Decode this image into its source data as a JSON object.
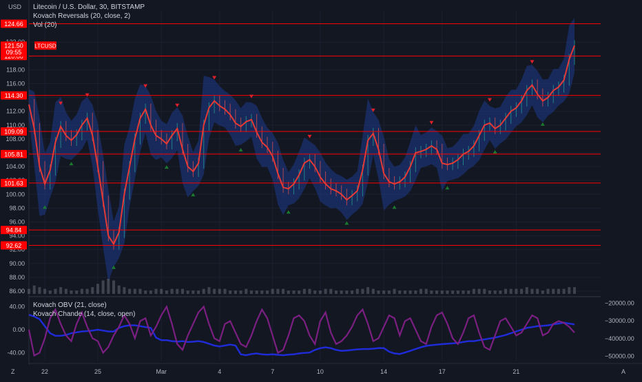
{
  "header": {
    "symbol_line": "Litecoin / U.S. Dollar, 30, BITSTAMP",
    "indicator_1": "Kovach Reversals (20, close, 2)",
    "indicator_2": "Vol (20)",
    "currency": "USD"
  },
  "price_tag": {
    "symbol": "LTCUSD",
    "price": "121.50",
    "countdown": "09:55"
  },
  "oscillator_legend": {
    "line_1": "Kovach OBV (21, close)",
    "line_2": "Kovach Chande (14, close, open)"
  },
  "bottom_corners": {
    "left": "Z",
    "right": "A"
  },
  "colors": {
    "background": "#131722",
    "level_line": "#ff0000",
    "price_line": "#e53935",
    "band_fill": "#1e3a8a",
    "up_marker": "#1b7a2f",
    "down_marker": "#e0202a",
    "obv_line": "#1f2bd6",
    "chande_line": "#7b1f82",
    "volume": "#5d606b"
  },
  "chart_data": [
    {
      "type": "line",
      "title": "Litecoin / U.S. Dollar, 30, BITSTAMP",
      "ylabel": "USD",
      "x_tick_labels": [
        "22",
        "25",
        "Mar",
        "4",
        "7",
        "10",
        "14",
        "17",
        "21"
      ],
      "y_ticks": [
        86.0,
        88.0,
        90.0,
        92.0,
        94.0,
        96.0,
        98.0,
        100.0,
        102.0,
        104.0,
        106.0,
        108.0,
        110.0,
        112.0,
        114.0,
        116.0,
        118.0,
        120.0,
        122.0
      ],
      "ylim": [
        85.5,
        126.5
      ],
      "horizontal_levels": [
        124.66,
        120.0,
        114.3,
        109.09,
        105.81,
        101.63,
        94.84,
        92.62
      ],
      "last_price": 121.5,
      "series": [
        {
          "values": [
            113.0,
            109.5,
            104.0,
            101.5,
            103.5,
            107.5,
            109.8,
            108.5,
            107.8,
            108.6,
            110.0,
            111.0,
            108.5,
            104.0,
            99.0,
            94.0,
            92.8,
            94.5,
            100.0,
            104.0,
            108.0,
            111.0,
            112.3,
            110.0,
            108.5,
            108.0,
            107.3,
            108.5,
            109.5,
            106.5,
            104.0,
            103.3,
            104.5,
            110.0,
            112.5,
            113.5,
            112.8,
            112.3,
            111.5,
            110.3,
            109.8,
            110.5,
            110.8,
            109.0,
            107.5,
            106.8,
            105.5,
            103.0,
            101.0,
            100.8,
            101.5,
            102.8,
            104.5,
            105.0,
            104.0,
            102.5,
            101.5,
            100.8,
            100.5,
            100.0,
            99.2,
            99.8,
            100.5,
            103.5,
            107.8,
            108.8,
            106.5,
            103.0,
            101.8,
            101.5,
            101.8,
            102.5,
            104.0,
            106.0,
            106.2,
            106.5,
            107.0,
            106.5,
            104.5,
            104.3,
            104.5,
            105.0,
            105.8,
            106.2,
            107.0,
            108.5,
            110.0,
            110.3,
            109.5,
            110.0,
            111.0,
            112.0,
            112.5,
            113.5,
            115.0,
            115.8,
            114.5,
            113.5,
            114.0,
            115.0,
            115.5,
            116.5,
            119.5,
            121.5
          ],
          "note": ""
        }
      ],
      "x_tick_index": [
        3,
        13,
        25,
        36,
        46,
        55,
        67,
        78,
        92
      ]
    },
    {
      "type": "bar",
      "ylabel": "",
      "series": [
        {
          "values": [
            3,
            5,
            4,
            3,
            2,
            3,
            4,
            3,
            2,
            2,
            3,
            3,
            4,
            6,
            8,
            9,
            8,
            5,
            4,
            3,
            3,
            3,
            2,
            2,
            3,
            3,
            2,
            3,
            3,
            3,
            2,
            2,
            2,
            3,
            4,
            3,
            3,
            3,
            2,
            2,
            2,
            3,
            2,
            2,
            2,
            2,
            3,
            3,
            3,
            2,
            2,
            2,
            3,
            3,
            2,
            2,
            3,
            3,
            2,
            2,
            2,
            2,
            3,
            3,
            4,
            3,
            2,
            2,
            2,
            3,
            2,
            2,
            2,
            2,
            3,
            3,
            2,
            2,
            2,
            2,
            2,
            2,
            2,
            2,
            3,
            3,
            3,
            2,
            2,
            2,
            3,
            3,
            3,
            3,
            4,
            3,
            3,
            2,
            3,
            3,
            3,
            3,
            4,
            4
          ]
        }
      ]
    },
    {
      "type": "line",
      "left_axis_ticks": [
        40.0,
        0.0,
        -40.0
      ],
      "left_axis_labels": [
        "40.00",
        "0.00",
        "-40.00"
      ],
      "left_ylim": [
        -55,
        55
      ],
      "right_axis_ticks": [
        -20000,
        -30000,
        -40000,
        -50000
      ],
      "right_axis_labels": [
        "−20000.00",
        "−30000.00",
        "−40000.00",
        "−50000.00"
      ],
      "right_ylim": [
        -53000,
        -17000
      ],
      "series": [
        {
          "name": "Kovach OBV (21, close)",
          "axis": "right",
          "values": [
            -26500,
            -27500,
            -29000,
            -33000,
            -37000,
            -38500,
            -38500,
            -38000,
            -37000,
            -36500,
            -36000,
            -35800,
            -35500,
            -35000,
            -35500,
            -36000,
            -36000,
            -34000,
            -33000,
            -32500,
            -32500,
            -33000,
            -33500,
            -34000,
            -39500,
            -41000,
            -41000,
            -41500,
            -41800,
            -41500,
            -42000,
            -41800,
            -41500,
            -42000,
            -43000,
            -44000,
            -44500,
            -44000,
            -43500,
            -44000,
            -49000,
            -49500,
            -48800,
            -48500,
            -49000,
            -49200,
            -49000,
            -49300,
            -49500,
            -49200,
            -49000,
            -48500,
            -48200,
            -48000,
            -46500,
            -45500,
            -45000,
            -45500,
            -46500,
            -47000,
            -46800,
            -46500,
            -46200,
            -46000,
            -46000,
            -45800,
            -45500,
            -45500,
            -47500,
            -48500,
            -48800,
            -48000,
            -47000,
            -46000,
            -45000,
            -44200,
            -43800,
            -43500,
            -43200,
            -43000,
            -42800,
            -42500,
            -42000,
            -41500,
            -41500,
            -41000,
            -40500,
            -40000,
            -39500,
            -38800,
            -38000,
            -37000,
            -36000,
            -35000,
            -34000,
            -33500,
            -33000,
            -32800,
            -32500,
            -32000,
            -31500,
            -31000,
            -31500,
            -32000
          ]
        },
        {
          "name": "Kovach Chande (14, close, open)",
          "axis": "left",
          "values": [
            0,
            -45,
            -40,
            -15,
            20,
            35,
            10,
            -10,
            -20,
            10,
            30,
            5,
            -15,
            -20,
            -40,
            -30,
            -10,
            5,
            25,
            10,
            -15,
            15,
            20,
            -10,
            5,
            25,
            40,
            10,
            -25,
            -35,
            -10,
            10,
            30,
            40,
            10,
            -15,
            -20,
            10,
            15,
            -5,
            -25,
            -30,
            -10,
            15,
            35,
            20,
            -10,
            -40,
            -35,
            -10,
            20,
            25,
            15,
            -10,
            -25,
            15,
            30,
            -5,
            -25,
            -20,
            -10,
            5,
            25,
            35,
            10,
            -20,
            -15,
            5,
            25,
            20,
            -10,
            15,
            20,
            0,
            -20,
            -25,
            5,
            25,
            30,
            10,
            -15,
            -25,
            -5,
            20,
            25,
            -5,
            -30,
            -35,
            -10,
            15,
            20,
            5,
            -10,
            -5,
            10,
            25,
            20,
            -10,
            -5,
            10,
            15,
            12,
            5,
            -5
          ]
        }
      ]
    }
  ]
}
